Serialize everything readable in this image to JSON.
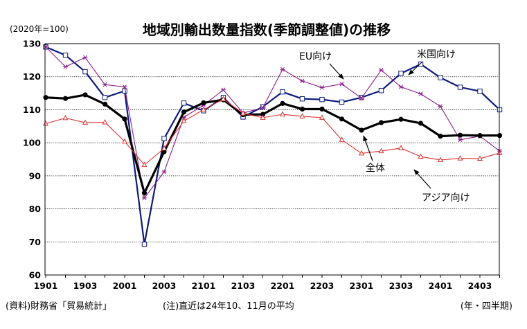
{
  "chart_data": {
    "type": "line",
    "title": "地域別輸出数量指数(季節調整値)の推移",
    "unit_label": "(2020年=100)",
    "x": [
      "1901",
      "1902",
      "1903",
      "1904",
      "2001",
      "2002",
      "2003",
      "2004",
      "2101",
      "2102",
      "2103",
      "2104",
      "2201",
      "2202",
      "2203",
      "2204",
      "2301",
      "2302",
      "2303",
      "2304",
      "2401",
      "2402",
      "2403",
      "2404"
    ],
    "x_tick_labels": [
      "1901",
      "1903",
      "2001",
      "2003",
      "2101",
      "2103",
      "2201",
      "2203",
      "2301",
      "2303",
      "2401",
      "2403"
    ],
    "xlabel": "",
    "ylabel": "",
    "ylim": [
      60,
      130
    ],
    "y_ticks": [
      60,
      70,
      80,
      90,
      100,
      110,
      120,
      130
    ],
    "grid": true,
    "series": [
      {
        "name": "米国向け",
        "color": "#0a1a7a",
        "marker": "open-square",
        "values": [
          129,
          126.5,
          121.5,
          113.7,
          115.7,
          69.3,
          101.3,
          112.0,
          109.7,
          113.7,
          107.8,
          110.9,
          115.4,
          113.3,
          113.1,
          112.3,
          113.7,
          115.8,
          121.0,
          123.8,
          119.7,
          116.8,
          115.6,
          110.0
        ]
      },
      {
        "name": "EU向け",
        "color": "#8b1a8b",
        "marker": "asterisk",
        "values": [
          129.0,
          123.0,
          125.8,
          117.6,
          116.9,
          83.3,
          91.2,
          107.7,
          111.4,
          116.0,
          109.0,
          110.6,
          122.2,
          118.7,
          116.7,
          117.8,
          113.5,
          122.0,
          116.9,
          114.8,
          111.0,
          100.9,
          102.0,
          97.5
        ]
      },
      {
        "name": "全体",
        "color": "#000000",
        "marker": "filled-circle",
        "values": [
          113.7,
          113.4,
          114.5,
          111.7,
          107.2,
          84.8,
          97.3,
          109.3,
          112.1,
          113.0,
          108.5,
          108.6,
          111.9,
          110.2,
          110.2,
          107.2,
          103.8,
          106.1,
          107.1,
          105.9,
          102.0,
          102.3,
          102.2,
          102.2
        ]
      },
      {
        "name": "アジア向け",
        "color": "#e03030",
        "marker": "open-triangle",
        "values": [
          105.8,
          107.5,
          106.1,
          106.2,
          100.4,
          93.3,
          98.3,
          106.6,
          110.0,
          113.2,
          108.9,
          107.6,
          108.6,
          108.0,
          107.6,
          100.9,
          96.8,
          97.5,
          98.4,
          95.8,
          94.8,
          95.3,
          95.2,
          96.9
        ]
      }
    ],
    "annotations": [
      "EU向け",
      "米国向け",
      "全体",
      "アジア向け"
    ]
  },
  "footer": {
    "source": "(資料)財務省「貿易統計」",
    "note": "(注)直近は24年10、11月の平均",
    "period": "(年・四半期)"
  }
}
